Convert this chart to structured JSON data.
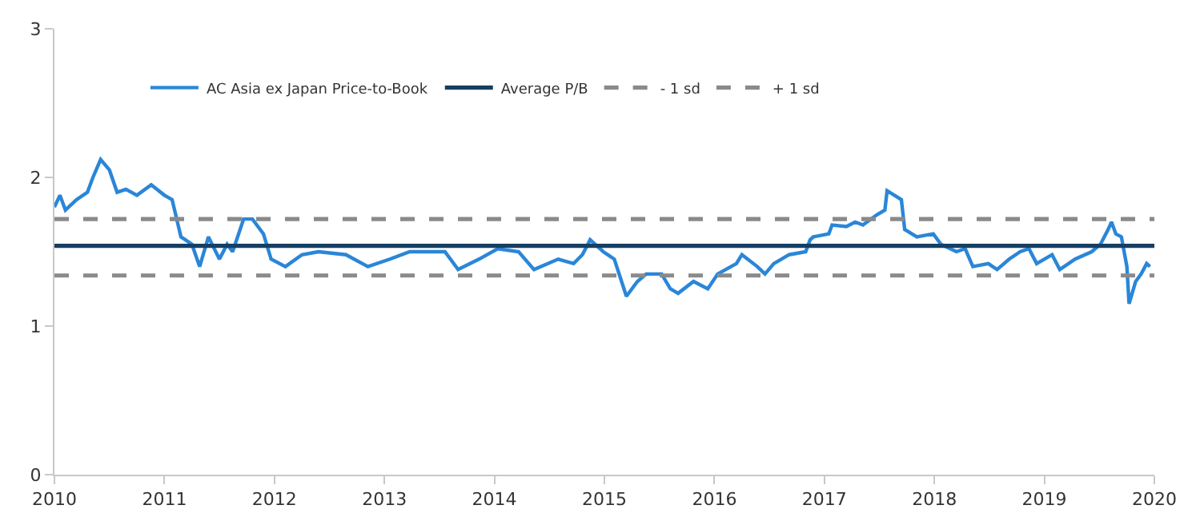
{
  "chart_data": {
    "type": "line",
    "xlim": [
      2010,
      2020
    ],
    "ylim": [
      0,
      3
    ],
    "xticks": [
      2010,
      2011,
      2012,
      2013,
      2014,
      2015,
      2016,
      2017,
      2018,
      2019,
      2020
    ],
    "yticks": [
      0,
      1,
      2,
      3
    ],
    "legend": "top",
    "marker": "none",
    "series": [
      {
        "name": "AC Asia ex Japan Price-to-Book",
        "color": "#2a86d8",
        "line_style": "solid",
        "x": [
          2010.0,
          2010.05,
          2010.1,
          2010.2,
          2010.3,
          2010.35,
          2010.42,
          2010.5,
          2010.57,
          2010.65,
          2010.75,
          2010.88,
          2011.0,
          2011.07,
          2011.15,
          2011.25,
          2011.32,
          2011.4,
          2011.5,
          2011.57,
          2011.62,
          2011.72,
          2011.8,
          2011.9,
          2011.97,
          2012.1,
          2012.25,
          2012.4,
          2012.65,
          2012.85,
          2013.05,
          2013.23,
          2013.4,
          2013.55,
          2013.67,
          2013.86,
          2014.03,
          2014.22,
          2014.36,
          2014.58,
          2014.72,
          2014.8,
          2014.87,
          2014.99,
          2015.09,
          2015.2,
          2015.3,
          2015.38,
          2015.52,
          2015.6,
          2015.67,
          2015.81,
          2015.94,
          2016.03,
          2016.2,
          2016.25,
          2016.39,
          2016.46,
          2016.54,
          2016.68,
          2016.83,
          2016.87,
          2016.9,
          2017.04,
          2017.07,
          2017.2,
          2017.28,
          2017.35,
          2017.48,
          2017.55,
          2017.57,
          2017.7,
          2017.73,
          2017.84,
          2017.99,
          2018.06,
          2018.2,
          2018.28,
          2018.35,
          2018.49,
          2018.57,
          2018.68,
          2018.78,
          2018.86,
          2018.93,
          2019.07,
          2019.14,
          2019.28,
          2019.43,
          2019.51,
          2019.58,
          2019.61,
          2019.65,
          2019.7,
          2019.75,
          2019.77,
          2019.83,
          2019.88,
          2019.93,
          2019.96
        ],
        "values": [
          1.8,
          1.88,
          1.78,
          1.85,
          1.9,
          2.0,
          2.12,
          2.05,
          1.9,
          1.92,
          1.88,
          1.95,
          1.88,
          1.85,
          1.6,
          1.55,
          1.4,
          1.6,
          1.45,
          1.55,
          1.5,
          1.72,
          1.72,
          1.62,
          1.45,
          1.4,
          1.48,
          1.5,
          1.48,
          1.4,
          1.45,
          1.5,
          1.5,
          1.5,
          1.38,
          1.45,
          1.52,
          1.5,
          1.38,
          1.45,
          1.42,
          1.48,
          1.58,
          1.5,
          1.45,
          1.2,
          1.3,
          1.35,
          1.35,
          1.25,
          1.22,
          1.3,
          1.25,
          1.35,
          1.42,
          1.48,
          1.4,
          1.35,
          1.42,
          1.48,
          1.5,
          1.58,
          1.6,
          1.62,
          1.68,
          1.67,
          1.7,
          1.68,
          1.75,
          1.78,
          1.91,
          1.85,
          1.65,
          1.6,
          1.62,
          1.55,
          1.5,
          1.52,
          1.4,
          1.42,
          1.38,
          1.45,
          1.5,
          1.52,
          1.42,
          1.48,
          1.38,
          1.45,
          1.5,
          1.55,
          1.65,
          1.7,
          1.62,
          1.6,
          1.4,
          1.15,
          1.3,
          1.35,
          1.42,
          1.4
        ]
      }
    ],
    "ref_lines": [
      {
        "axis": "y",
        "value": 1.54,
        "label": "Average P/B",
        "color": "#163f63",
        "line_style": "solid"
      },
      {
        "axis": "y",
        "value": 1.34,
        "label": "- 1 sd",
        "color": "#8a8a8a",
        "line_style": "dashed"
      },
      {
        "axis": "y",
        "value": 1.72,
        "label": "+ 1 sd",
        "color": "#8a8a8a",
        "line_style": "dashed"
      }
    ]
  }
}
